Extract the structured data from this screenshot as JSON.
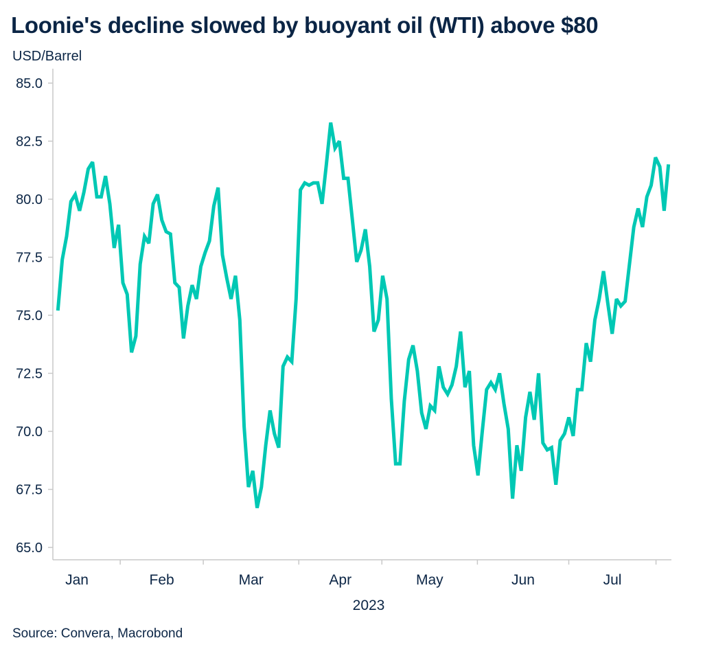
{
  "chart_data": {
    "type": "line",
    "title": "Loonie's decline slowed by buoyant oil (WTI) above $80",
    "ylabel": "USD/Barrel",
    "xlabel": "2023",
    "source": "Source: Convera, Macrobond",
    "ylim": [
      65,
      85
    ],
    "yticks": [
      "65.0",
      "67.5",
      "70.0",
      "72.5",
      "75.0",
      "77.5",
      "80.0",
      "82.5",
      "85.0"
    ],
    "xticks": [
      "Jan",
      "Feb",
      "Mar",
      "Apr",
      "May",
      "Jun",
      "Jul"
    ],
    "x_range": [
      "2023-01-11",
      "2023-08-04"
    ],
    "grid": false,
    "line_color": "#00c8b4",
    "series": [
      {
        "values": [
          75.2,
          77.4,
          78.4,
          79.9,
          80.2,
          79.5,
          80.3,
          81.3,
          81.6,
          80.1,
          80.1,
          81.0,
          79.8,
          77.9,
          78.9,
          76.4,
          75.9,
          73.4,
          74.1,
          77.2,
          78.4,
          78.1,
          79.8,
          80.2,
          79.1,
          78.6,
          78.5,
          76.4,
          76.2,
          74.0,
          75.4,
          76.3,
          75.7,
          77.1,
          77.7,
          78.2,
          79.7,
          80.5,
          77.6,
          76.6,
          75.7,
          76.7,
          74.8,
          70.2,
          67.6,
          68.3,
          66.7,
          67.6,
          69.4,
          70.9,
          69.9,
          69.3,
          72.8,
          73.2,
          73.0,
          75.7,
          80.4,
          80.7,
          80.6,
          80.7,
          80.7,
          79.8,
          81.5,
          83.3,
          82.2,
          82.5,
          80.9,
          80.9,
          79.1,
          77.3,
          77.8,
          78.7,
          77.1,
          74.3,
          74.8,
          76.7,
          75.7,
          71.4,
          68.6,
          68.6,
          71.3,
          73.1,
          73.7,
          72.6,
          70.8,
          70.1,
          71.1,
          70.9,
          72.8,
          71.9,
          71.6,
          72.0,
          72.8,
          74.3,
          71.9,
          72.6,
          69.4,
          68.1,
          70.0,
          71.8,
          72.1,
          71.8,
          72.5,
          71.2,
          70.1,
          67.1,
          69.4,
          68.3,
          70.6,
          71.7,
          70.5,
          72.5,
          69.5,
          69.2,
          69.3,
          67.7,
          69.6,
          69.9,
          70.6,
          69.8,
          71.8,
          71.8,
          73.8,
          73.0,
          74.8,
          75.7,
          76.9,
          75.5,
          74.2,
          75.7,
          75.4,
          75.6,
          77.2,
          78.8,
          79.6,
          78.8,
          80.1,
          80.6,
          81.8,
          81.4,
          79.5,
          81.5
        ]
      }
    ]
  }
}
